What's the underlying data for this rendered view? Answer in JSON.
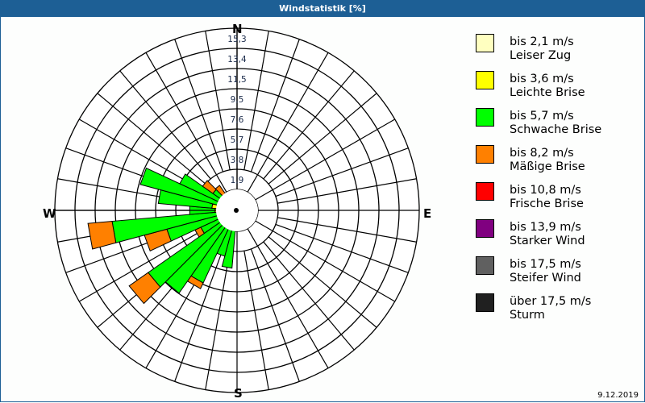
{
  "title": "Windstatistik [%]",
  "date": "9.12.2019",
  "compass": {
    "n": "N",
    "e": "E",
    "s": "S",
    "w": "W"
  },
  "legend": [
    {
      "line1": "bis 2,1 m/s",
      "line2": "Leiser Zug",
      "color": "#ffffc0"
    },
    {
      "line1": "bis 3,6 m/s",
      "line2": "Leichte Brise",
      "color": "#ffff00"
    },
    {
      "line1": "bis 5,7 m/s",
      "line2": "Schwache Brise",
      "color": "#00ff00"
    },
    {
      "line1": "bis 8,2 m/s",
      "line2": "Mäßige Brise",
      "color": "#ff8000"
    },
    {
      "line1": "bis 10,8 m/s",
      "line2": "Frische Brise",
      "color": "#ff0000"
    },
    {
      "line1": "bis 13,9 m/s",
      "line2": "Starker Wind",
      "color": "#800080"
    },
    {
      "line1": "bis 17,5 m/s",
      "line2": "Steifer Wind",
      "color": "#606060"
    },
    {
      "line1": "über 17,5 m/s",
      "line2": "Sturm",
      "color": "#202020"
    }
  ],
  "chart_data": {
    "type": "windrose",
    "title": "Windstatistik [%]",
    "radial_ticks": [
      "1,9",
      "3,8",
      "5,7",
      "7,6",
      "9,5",
      "11,5",
      "13,4",
      "15,3"
    ],
    "radial_max": 15.3,
    "sector_width_deg": 10,
    "series_names": [
      "bis 2,1 m/s",
      "bis 3,6 m/s",
      "bis 5,7 m/s",
      "bis 8,2 m/s",
      "bis 10,8 m/s",
      "bis 13,9 m/s",
      "bis 17,5 m/s",
      "über 17,5 m/s"
    ],
    "sectors": [
      {
        "dir": 170,
        "values": [
          0.1,
          0.2,
          0.8,
          0,
          0,
          0,
          0,
          0
        ]
      },
      {
        "dir": 180,
        "values": [
          0.1,
          0.1,
          0.3,
          0,
          0,
          0,
          0,
          0
        ]
      },
      {
        "dir": 190,
        "values": [
          0.2,
          0.3,
          5.0,
          0,
          0,
          0,
          0,
          0
        ]
      },
      {
        "dir": 200,
        "values": [
          0.2,
          0.3,
          4.0,
          0,
          0,
          0,
          0,
          0
        ]
      },
      {
        "dir": 210,
        "values": [
          0.2,
          0.4,
          7.0,
          0.6,
          0,
          0,
          0,
          0
        ]
      },
      {
        "dir": 220,
        "values": [
          0.2,
          0.4,
          9.0,
          0,
          0,
          0,
          0,
          0
        ]
      },
      {
        "dir": 230,
        "values": [
          0.2,
          0.5,
          9.6,
          2.2,
          0,
          0,
          0,
          0
        ]
      },
      {
        "dir": 240,
        "values": [
          0.2,
          0.6,
          3.0,
          0.6,
          0,
          0,
          0,
          0
        ]
      },
      {
        "dir": 250,
        "values": [
          0.2,
          0.7,
          6.0,
          2.2,
          0,
          0,
          0,
          0
        ]
      },
      {
        "dir": 260,
        "values": [
          0.3,
          1.2,
          10.4,
          2.3,
          0,
          0,
          0,
          0
        ]
      },
      {
        "dir": 270,
        "values": [
          0.3,
          1.8,
          2.4,
          0,
          0,
          0,
          0,
          0
        ]
      },
      {
        "dir": 280,
        "values": [
          0.3,
          2.1,
          5.1,
          0,
          0,
          0,
          0,
          0
        ]
      },
      {
        "dir": 290,
        "values": [
          0.2,
          0.8,
          8.5,
          0,
          0,
          0,
          0,
          0
        ]
      },
      {
        "dir": 300,
        "values": [
          0.2,
          0.4,
          5.4,
          0,
          0,
          0,
          0,
          0
        ]
      },
      {
        "dir": 310,
        "values": [
          0.1,
          0.2,
          2.5,
          1.2,
          0,
          0,
          0,
          0
        ]
      },
      {
        "dir": 320,
        "values": [
          0.1,
          0.1,
          0.3,
          2.4,
          0,
          0,
          0,
          0
        ]
      },
      {
        "dir": 330,
        "values": [
          0.1,
          0.1,
          0.2,
          0,
          0,
          0,
          0,
          0
        ]
      },
      {
        "dir": 350,
        "values": [
          0.1,
          0.1,
          0.1,
          0,
          0,
          0,
          0,
          0
        ]
      },
      {
        "dir": 0,
        "values": [
          0.1,
          0,
          0,
          0,
          0,
          0,
          0,
          0
        ]
      },
      {
        "dir": 160,
        "values": [
          0.1,
          0.1,
          0.9,
          0,
          0,
          0,
          0,
          0
        ]
      }
    ]
  }
}
